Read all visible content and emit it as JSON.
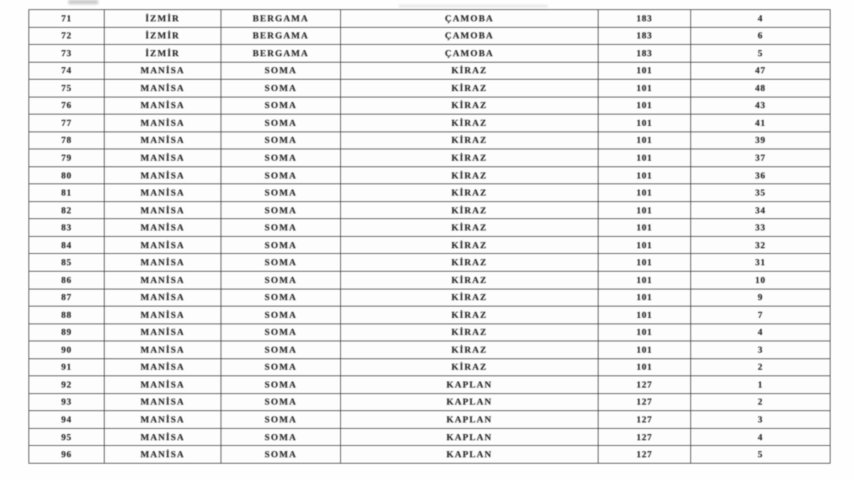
{
  "document": {
    "kind": "scanned-table-page",
    "colors": {
      "paper": "#fefefe",
      "ink": "#272727",
      "grid_line": "#343434"
    }
  },
  "table": {
    "rows": [
      [
        "71",
        "İZMİR",
        "BERGAMA",
        "ÇAMOBA",
        "183",
        "4"
      ],
      [
        "72",
        "İZMİR",
        "BERGAMA",
        "ÇAMOBA",
        "183",
        "6"
      ],
      [
        "73",
        "İZMİR",
        "BERGAMA",
        "ÇAMOBA",
        "183",
        "5"
      ],
      [
        "74",
        "MANİSA",
        "SOMA",
        "KİRAZ",
        "101",
        "47"
      ],
      [
        "75",
        "MANİSA",
        "SOMA",
        "KİRAZ",
        "101",
        "48"
      ],
      [
        "76",
        "MANİSA",
        "SOMA",
        "KİRAZ",
        "101",
        "43"
      ],
      [
        "77",
        "MANİSA",
        "SOMA",
        "KİRAZ",
        "101",
        "41"
      ],
      [
        "78",
        "MANİSA",
        "SOMA",
        "KİRAZ",
        "101",
        "39"
      ],
      [
        "79",
        "MANİSA",
        "SOMA",
        "KİRAZ",
        "101",
        "37"
      ],
      [
        "80",
        "MANİSA",
        "SOMA",
        "KİRAZ",
        "101",
        "36"
      ],
      [
        "81",
        "MANİSA",
        "SOMA",
        "KİRAZ",
        "101",
        "35"
      ],
      [
        "82",
        "MANİSA",
        "SOMA",
        "KİRAZ",
        "101",
        "34"
      ],
      [
        "83",
        "MANİSA",
        "SOMA",
        "KİRAZ",
        "101",
        "33"
      ],
      [
        "84",
        "MANİSA",
        "SOMA",
        "KİRAZ",
        "101",
        "32"
      ],
      [
        "85",
        "MANİSA",
        "SOMA",
        "KİRAZ",
        "101",
        "31"
      ],
      [
        "86",
        "MANİSA",
        "SOMA",
        "KİRAZ",
        "101",
        "10"
      ],
      [
        "87",
        "MANİSA",
        "SOMA",
        "KİRAZ",
        "101",
        "9"
      ],
      [
        "88",
        "MANİSA",
        "SOMA",
        "KİRAZ",
        "101",
        "7"
      ],
      [
        "89",
        "MANİSA",
        "SOMA",
        "KİRAZ",
        "101",
        "4"
      ],
      [
        "90",
        "MANİSA",
        "SOMA",
        "KİRAZ",
        "101",
        "3"
      ],
      [
        "91",
        "MANİSA",
        "SOMA",
        "KİRAZ",
        "101",
        "2"
      ],
      [
        "92",
        "MANİSA",
        "SOMA",
        "KAPLAN",
        "127",
        "1"
      ],
      [
        "93",
        "MANİSA",
        "SOMA",
        "KAPLAN",
        "127",
        "2"
      ],
      [
        "94",
        "MANİSA",
        "SOMA",
        "KAPLAN",
        "127",
        "3"
      ],
      [
        "95",
        "MANİSA",
        "SOMA",
        "KAPLAN",
        "127",
        "4"
      ],
      [
        "96",
        "MANİSA",
        "SOMA",
        "KAPLAN",
        "127",
        "5"
      ]
    ],
    "cell_names": [
      "cell-row-number",
      "cell-province",
      "cell-district",
      "cell-village",
      "cell-code",
      "cell-count"
    ]
  }
}
